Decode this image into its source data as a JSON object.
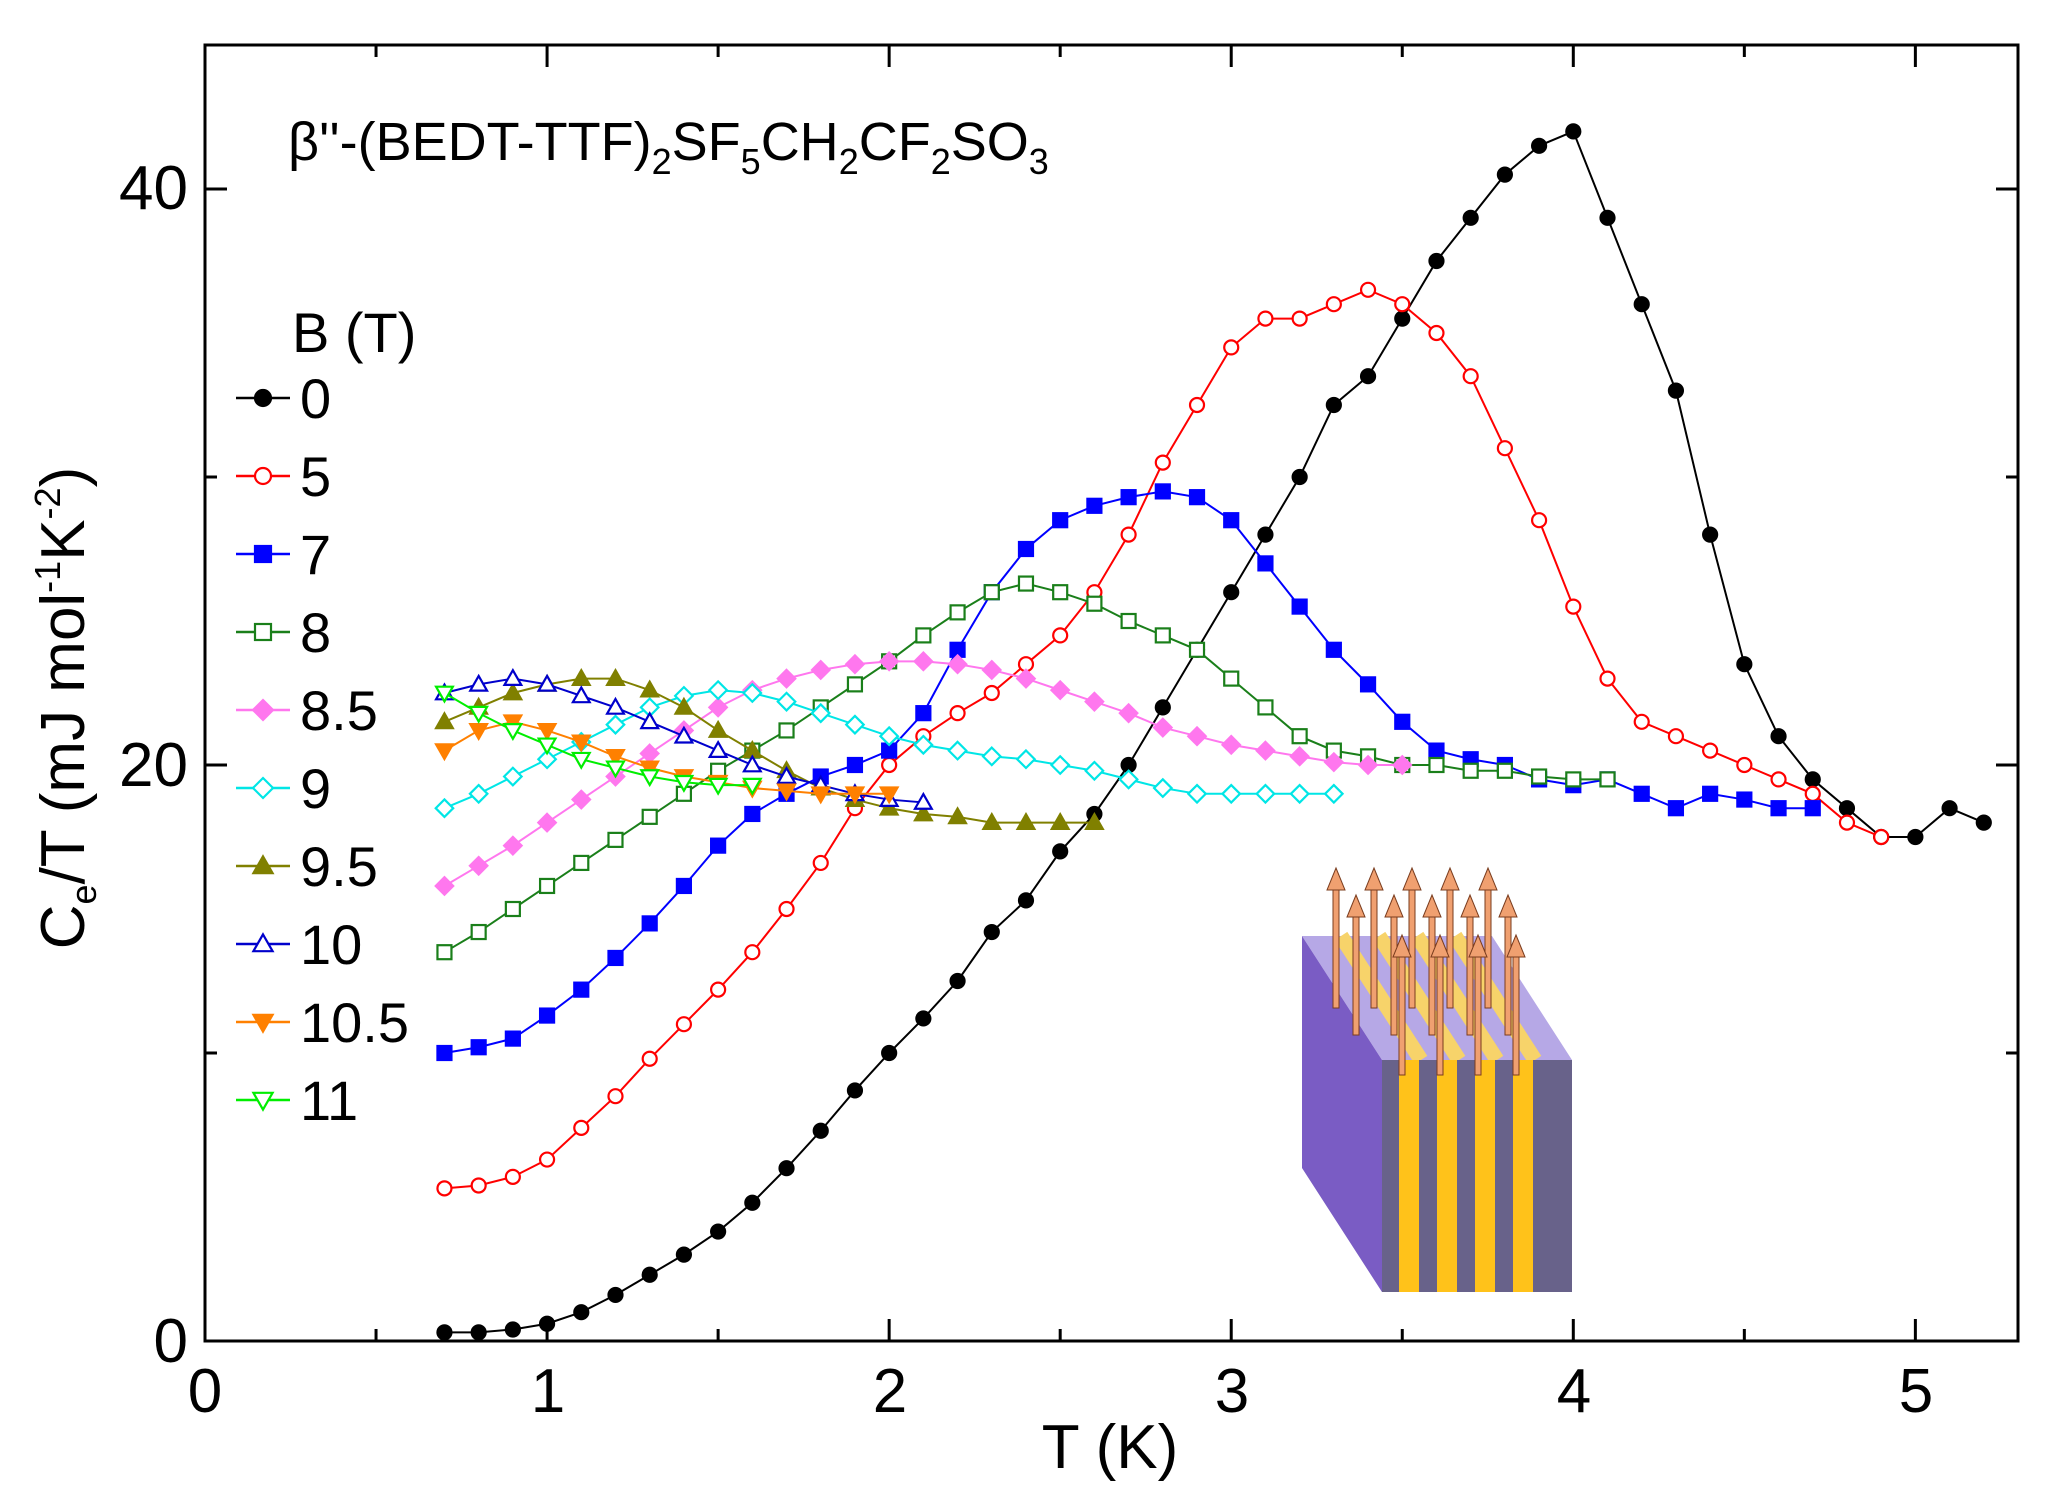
{
  "chart_data": {
    "type": "scatter",
    "title": "β''-(BEDT-TTF)2SF5CH2CF2SO3",
    "title_parts": {
      "prefix": "β''-(BEDT-TTF)",
      "s1": "2",
      "p2": "SF",
      "s2": "5",
      "p3": "CH",
      "s3": "2",
      "p4": "CF",
      "s4": "2",
      "p5": "SO",
      "s5": "3"
    },
    "xlabel": "T (K)",
    "ylabel": "Ce/T (mJ mol-1K-2)",
    "ylabel_parts": {
      "a": "C",
      "a_sub": "e",
      "b": "/T (mJ mol",
      "b_sup": "-1",
      "c": "K",
      "c_sup": "-2",
      "d": ")"
    },
    "xlim": [
      0,
      5.3
    ],
    "ylim": [
      0,
      45
    ],
    "xticks": [
      0,
      1,
      2,
      3,
      4,
      5
    ],
    "yticks": [
      0,
      20,
      40
    ],
    "legend_title": "B (T)",
    "legend_position": "left",
    "series": [
      {
        "name": "0",
        "color": "#000000",
        "marker": "circle",
        "filled": true,
        "x": [
          0.7,
          0.8,
          0.9,
          1.0,
          1.1,
          1.2,
          1.3,
          1.4,
          1.5,
          1.6,
          1.7,
          1.8,
          1.9,
          2.0,
          2.1,
          2.2,
          2.3,
          2.4,
          2.5,
          2.6,
          2.7,
          2.8,
          2.9,
          3.0,
          3.1,
          3.2,
          3.3,
          3.4,
          3.5,
          3.6,
          3.7,
          3.8,
          3.9,
          4.0,
          4.1,
          4.2,
          4.3,
          4.4,
          4.5,
          4.6,
          4.7,
          4.8,
          4.9,
          5.0,
          5.1,
          5.2
        ],
        "y": [
          0.3,
          0.3,
          0.4,
          0.6,
          1.0,
          1.6,
          2.3,
          3.0,
          3.8,
          4.8,
          6.0,
          7.3,
          8.7,
          10.0,
          11.2,
          12.5,
          14.2,
          15.3,
          17.0,
          18.3,
          20.0,
          22.0,
          24.0,
          26.0,
          28.0,
          30.0,
          32.5,
          33.5,
          35.5,
          37.5,
          39.0,
          40.5,
          41.5,
          42.0,
          39.0,
          36.0,
          33.0,
          28.0,
          23.5,
          21.0,
          19.5,
          18.5,
          17.5,
          17.5,
          18.5,
          18.0
        ]
      },
      {
        "name": "5",
        "color": "#ff0000",
        "marker": "circle",
        "filled": false,
        "x": [
          0.7,
          0.8,
          0.9,
          1.0,
          1.1,
          1.2,
          1.3,
          1.4,
          1.5,
          1.6,
          1.7,
          1.8,
          1.9,
          2.0,
          2.1,
          2.2,
          2.3,
          2.4,
          2.5,
          2.6,
          2.7,
          2.8,
          2.9,
          3.0,
          3.1,
          3.2,
          3.3,
          3.4,
          3.5,
          3.6,
          3.7,
          3.8,
          3.9,
          4.0,
          4.1,
          4.2,
          4.3,
          4.4,
          4.5,
          4.6,
          4.7,
          4.8,
          4.9
        ],
        "y": [
          5.3,
          5.4,
          5.7,
          6.3,
          7.4,
          8.5,
          9.8,
          11.0,
          12.2,
          13.5,
          15.0,
          16.6,
          18.5,
          20.0,
          21.0,
          21.8,
          22.5,
          23.5,
          24.5,
          26.0,
          28.0,
          30.5,
          32.5,
          34.5,
          35.5,
          35.5,
          36.0,
          36.5,
          36.0,
          35.0,
          33.5,
          31.0,
          28.5,
          25.5,
          23.0,
          21.5,
          21.0,
          20.5,
          20.0,
          19.5,
          19.0,
          18.0,
          17.5
        ]
      },
      {
        "name": "7",
        "color": "#0000ff",
        "marker": "square",
        "filled": true,
        "x": [
          0.7,
          0.8,
          0.9,
          1.0,
          1.1,
          1.2,
          1.3,
          1.4,
          1.5,
          1.6,
          1.7,
          1.8,
          1.9,
          2.0,
          2.1,
          2.2,
          2.3,
          2.4,
          2.5,
          2.6,
          2.7,
          2.8,
          2.9,
          3.0,
          3.1,
          3.2,
          3.3,
          3.4,
          3.5,
          3.6,
          3.7,
          3.8,
          3.9,
          4.0,
          4.1,
          4.2,
          4.3,
          4.4,
          4.5,
          4.6,
          4.7
        ],
        "y": [
          10.0,
          10.2,
          10.5,
          11.3,
          12.2,
          13.3,
          14.5,
          15.8,
          17.2,
          18.3,
          19.0,
          19.6,
          20.0,
          20.5,
          21.8,
          24.0,
          26.0,
          27.5,
          28.5,
          29.0,
          29.3,
          29.5,
          29.3,
          28.5,
          27.0,
          25.5,
          24.0,
          22.8,
          21.5,
          20.5,
          20.2,
          20.0,
          19.5,
          19.3,
          19.5,
          19.0,
          18.5,
          19.0,
          18.8,
          18.5,
          18.5
        ]
      },
      {
        "name": "8",
        "color": "#1a7f1a",
        "marker": "square",
        "filled": false,
        "x": [
          0.7,
          0.8,
          0.9,
          1.0,
          1.1,
          1.2,
          1.3,
          1.4,
          1.5,
          1.6,
          1.7,
          1.8,
          1.9,
          2.0,
          2.1,
          2.2,
          2.3,
          2.4,
          2.5,
          2.6,
          2.7,
          2.8,
          2.9,
          3.0,
          3.1,
          3.2,
          3.3,
          3.4,
          3.5,
          3.6,
          3.7,
          3.8,
          3.9,
          4.0,
          4.1
        ],
        "y": [
          13.5,
          14.2,
          15.0,
          15.8,
          16.6,
          17.4,
          18.2,
          19.0,
          19.8,
          20.5,
          21.2,
          22.0,
          22.8,
          23.6,
          24.5,
          25.3,
          26.0,
          26.3,
          26.0,
          25.6,
          25.0,
          24.5,
          24.0,
          23.0,
          22.0,
          21.0,
          20.5,
          20.3,
          20.0,
          20.0,
          19.8,
          19.8,
          19.6,
          19.5,
          19.5
        ]
      },
      {
        "name": "8.5",
        "color": "#ff77ee",
        "marker": "diamond",
        "filled": true,
        "x": [
          0.7,
          0.8,
          0.9,
          1.0,
          1.1,
          1.2,
          1.3,
          1.4,
          1.5,
          1.6,
          1.7,
          1.8,
          1.9,
          2.0,
          2.1,
          2.2,
          2.3,
          2.4,
          2.5,
          2.6,
          2.7,
          2.8,
          2.9,
          3.0,
          3.1,
          3.2,
          3.3,
          3.4,
          3.5
        ],
        "y": [
          15.8,
          16.5,
          17.2,
          18.0,
          18.8,
          19.6,
          20.4,
          21.2,
          22.0,
          22.6,
          23.0,
          23.3,
          23.5,
          23.6,
          23.6,
          23.5,
          23.3,
          23.0,
          22.6,
          22.2,
          21.8,
          21.3,
          21.0,
          20.7,
          20.5,
          20.3,
          20.1,
          20.0,
          20.0
        ]
      },
      {
        "name": "9",
        "color": "#00e6e6",
        "marker": "diamond",
        "filled": false,
        "x": [
          0.7,
          0.8,
          0.9,
          1.0,
          1.1,
          1.2,
          1.3,
          1.4,
          1.5,
          1.6,
          1.7,
          1.8,
          1.9,
          2.0,
          2.1,
          2.2,
          2.3,
          2.4,
          2.5,
          2.6,
          2.7,
          2.8,
          2.9,
          3.0,
          3.1,
          3.2,
          3.3
        ],
        "y": [
          18.5,
          19.0,
          19.6,
          20.2,
          20.8,
          21.4,
          22.0,
          22.4,
          22.6,
          22.5,
          22.2,
          21.8,
          21.4,
          21.0,
          20.7,
          20.5,
          20.3,
          20.2,
          20.0,
          19.8,
          19.5,
          19.2,
          19.0,
          19.0,
          19.0,
          19.0,
          19.0
        ]
      },
      {
        "name": "9.5",
        "color": "#808000",
        "marker": "triangle-up",
        "filled": true,
        "x": [
          0.7,
          0.8,
          0.9,
          1.0,
          1.1,
          1.2,
          1.3,
          1.4,
          1.5,
          1.6,
          1.7,
          1.8,
          1.9,
          2.0,
          2.1,
          2.2,
          2.3,
          2.4,
          2.5,
          2.6
        ],
        "y": [
          21.5,
          22.0,
          22.5,
          22.8,
          23.0,
          23.0,
          22.6,
          22.0,
          21.2,
          20.5,
          19.8,
          19.2,
          18.8,
          18.5,
          18.3,
          18.2,
          18.0,
          18.0,
          18.0,
          18.0
        ]
      },
      {
        "name": "10",
        "color": "#0000cc",
        "marker": "triangle-up",
        "filled": false,
        "x": [
          0.7,
          0.8,
          0.9,
          1.0,
          1.1,
          1.2,
          1.3,
          1.4,
          1.5,
          1.6,
          1.7,
          1.8,
          1.9,
          2.0,
          2.1
        ],
        "y": [
          22.5,
          22.8,
          23.0,
          22.8,
          22.4,
          22.0,
          21.5,
          21.0,
          20.5,
          20.0,
          19.6,
          19.3,
          19.0,
          18.8,
          18.7
        ]
      },
      {
        "name": "10.5",
        "color": "#ff8000",
        "marker": "triangle-down",
        "filled": true,
        "x": [
          0.7,
          0.8,
          0.9,
          1.0,
          1.1,
          1.2,
          1.3,
          1.4,
          1.5,
          1.6,
          1.7,
          1.8,
          1.9,
          2.0
        ],
        "y": [
          20.5,
          21.2,
          21.5,
          21.2,
          20.8,
          20.3,
          19.9,
          19.6,
          19.4,
          19.2,
          19.1,
          19.0,
          19.0,
          19.0
        ]
      },
      {
        "name": "11",
        "color": "#00ee00",
        "marker": "triangle-down",
        "filled": false,
        "x": [
          0.7,
          0.8,
          0.9,
          1.0,
          1.1,
          1.2,
          1.3,
          1.4,
          1.5,
          1.6
        ],
        "y": [
          22.5,
          21.8,
          21.2,
          20.7,
          20.2,
          19.9,
          19.6,
          19.4,
          19.3,
          19.3
        ]
      }
    ]
  }
}
